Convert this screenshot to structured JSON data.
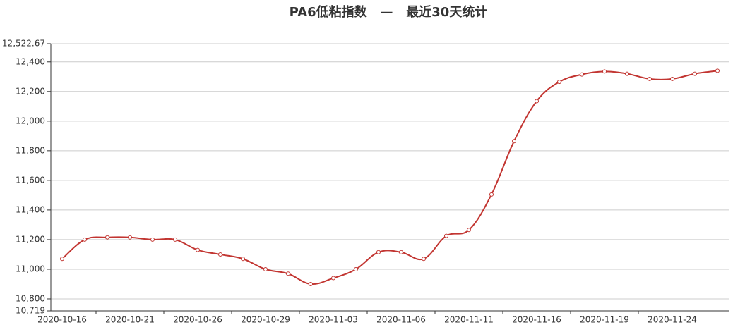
{
  "chart_data": {
    "type": "line",
    "title": "PA6低粘指数   —   最近30天统计",
    "categories": [
      "2020-10-16",
      null,
      null,
      "2020-10-21",
      null,
      null,
      "2020-10-26",
      null,
      null,
      "2020-10-29",
      null,
      null,
      "2020-11-03",
      null,
      null,
      "2020-11-06",
      null,
      null,
      "2020-11-11",
      null,
      null,
      "2020-11-16",
      null,
      null,
      "2020-11-19",
      null,
      null,
      "2020-11-24",
      null,
      null
    ],
    "values": [
      11070,
      11200,
      11215,
      11215,
      11200,
      11200,
      11130,
      11100,
      11070,
      11000,
      10970,
      10900,
      10940,
      11000,
      11115,
      11115,
      11070,
      11225,
      11265,
      11505,
      11865,
      12135,
      12265,
      12315,
      12335,
      12320,
      12285,
      12285,
      12320,
      12340
    ],
    "color": "#c23531",
    "ylim": [
      10719,
      12522.67
    ],
    "yticks": [
      {
        "value": 10719,
        "label": "10,719"
      },
      {
        "value": 10800,
        "label": "10,800"
      },
      {
        "value": 11000,
        "label": "11,000"
      },
      {
        "value": 11200,
        "label": "11,200"
      },
      {
        "value": 11400,
        "label": "11,400"
      },
      {
        "value": 11600,
        "label": "11,600"
      },
      {
        "value": 11800,
        "label": "11,800"
      },
      {
        "value": 12000,
        "label": "12,000"
      },
      {
        "value": 12200,
        "label": "12,200"
      },
      {
        "value": 12400,
        "label": "12,400"
      },
      {
        "value": 12522.67,
        "label": "12,522.67"
      }
    ],
    "grid": true
  }
}
